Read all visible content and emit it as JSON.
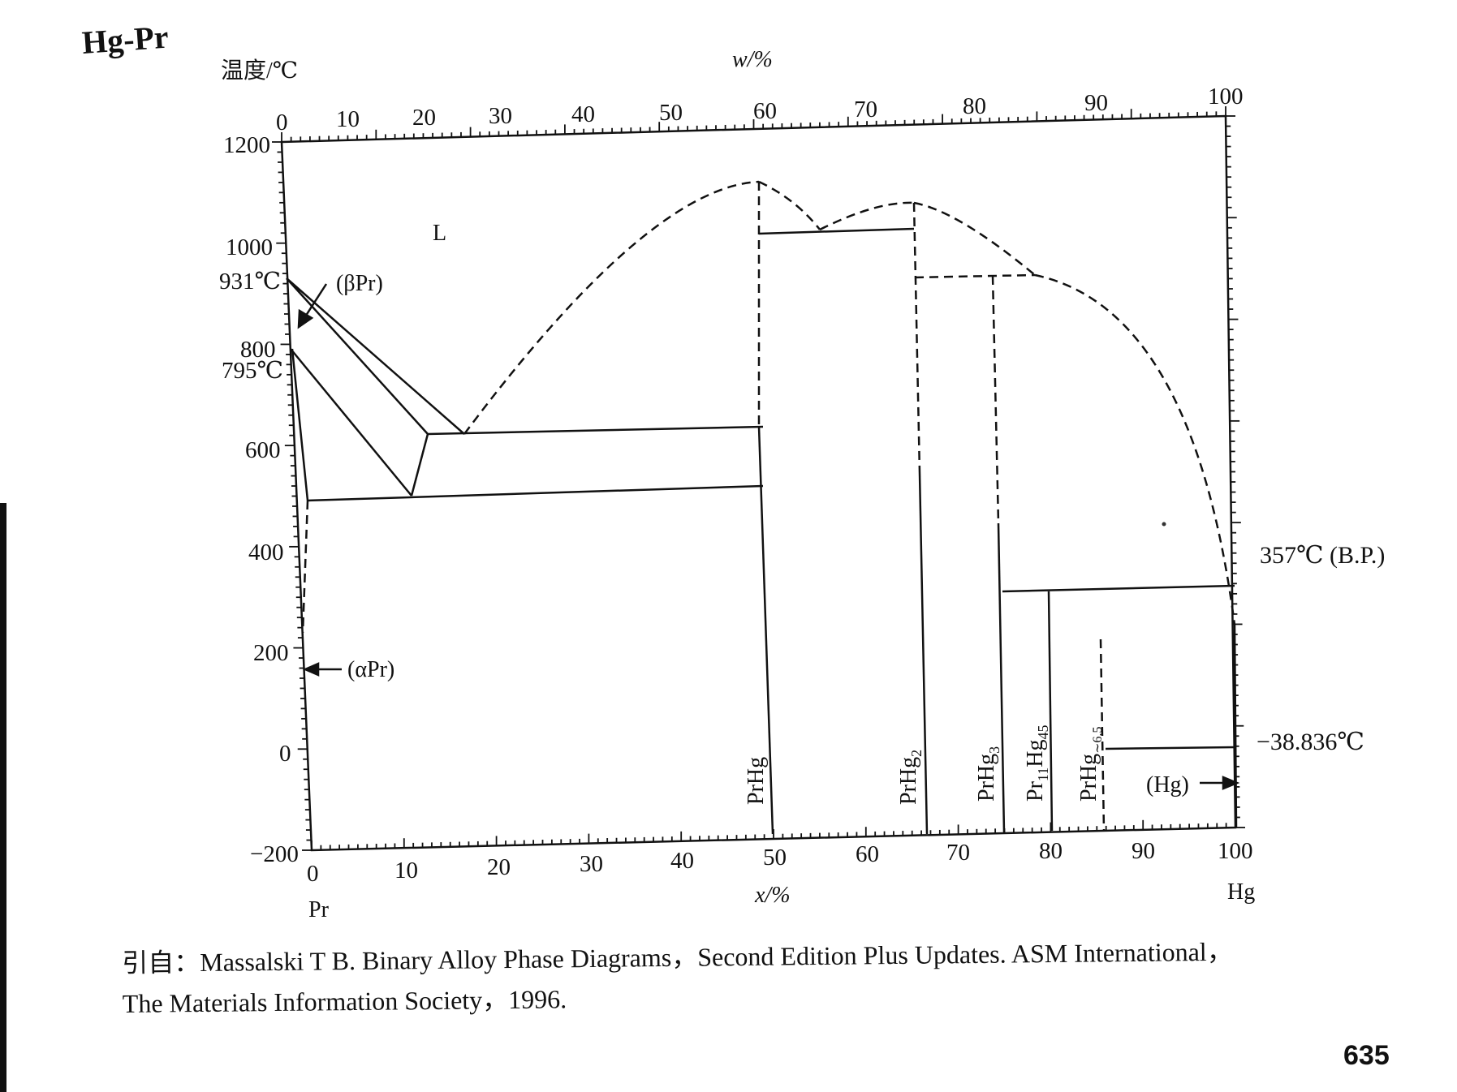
{
  "title": "Hg-Pr",
  "y_axis_label": "温度/℃",
  "top_axis_label": "w/%",
  "bottom_axis_label": "x/%",
  "left_element": "Pr",
  "right_element": "Hg",
  "y_ticks": [
    "1200",
    "1000",
    "800",
    "600",
    "400",
    "200",
    "0",
    "−200"
  ],
  "x_ticks": [
    "0",
    "10",
    "20",
    "30",
    "40",
    "50",
    "60",
    "70",
    "80",
    "90",
    "100"
  ],
  "w_ticks": [
    "0",
    "10",
    "20",
    "30",
    "40",
    "50",
    "60",
    "70",
    "80",
    "90",
    "100"
  ],
  "temperature_labels": {
    "pr_melting": "931℃",
    "pr_transition": "795℃",
    "hg_boiling": "357℃ (B.P.)",
    "hg_melting": "−38.836℃"
  },
  "phase_labels": {
    "liquid": "L",
    "beta_pr": "(βPr)",
    "alpha_pr": "(αPr)",
    "hg": "(Hg)"
  },
  "compounds": {
    "prhg": "PrHg",
    "prhg2": "PrHg",
    "prhg2_sub": "2",
    "prhg3": "PrHg",
    "prhg3_sub": "3",
    "pr11hg45_a": "Pr",
    "pr11hg45_b": "11",
    "pr11hg45_c": "Hg",
    "pr11hg45_d": "45",
    "prhg65": "PrHg",
    "prhg65_sub": "∼6.5"
  },
  "citation": {
    "line1": "引自：Massalski T B.  Binary Alloy Phase Diagrams，Second Edition Plus Updates.  ASM International，",
    "line2": "The Materials Information Society，1996."
  },
  "page_number": "635",
  "chart_data": {
    "type": "phase-diagram",
    "system": "Hg-Pr",
    "x_unit": "at.% Hg (x/%)",
    "w_unit": "wt.% Hg (w/%)",
    "y_unit": "℃",
    "xlim": [
      0,
      100
    ],
    "ylim": [
      -200,
      1200
    ],
    "pr_melting_point_c": 931,
    "pr_beta_alpha_transition_c": 795,
    "hg_boiling_point_c": 357,
    "hg_melting_point_c": -38.836,
    "compounds": [
      {
        "name": "PrHg",
        "x": 50,
        "congruent_max_c": 1120
      },
      {
        "name": "PrHg2",
        "x": 66.7,
        "congruent_max_c": 1080
      },
      {
        "name": "PrHg3",
        "x": 75
      },
      {
        "name": "Pr11Hg45",
        "x": 80.4
      },
      {
        "name": "PrHg~6.5",
        "x": 86.7
      }
    ],
    "horizontal_lines_c": [
      1025,
      945,
      635,
      520,
      320,
      -5
    ]
  }
}
